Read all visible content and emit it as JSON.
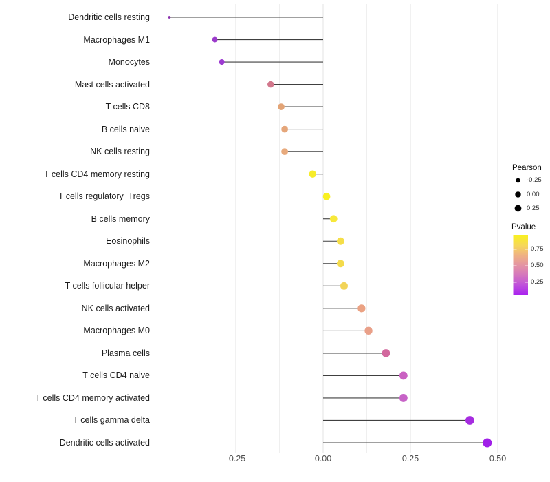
{
  "chart_data": {
    "type": "scatter",
    "variant": "horizontal-lollipop",
    "title": "",
    "xlabel": "",
    "ylabel": "",
    "grid": true,
    "xlim": [
      -0.49,
      0.52
    ],
    "x_ticks": [
      -0.25,
      0.0,
      0.25,
      0.5
    ],
    "x_tick_labels": [
      "-0.25",
      "0.00",
      "0.25",
      "0.50"
    ],
    "x_minor_gridlines": [
      -0.375,
      -0.125,
      0.125,
      0.375
    ],
    "stem_baseline": 0.0,
    "points": [
      {
        "label": "Dendritic cells resting",
        "pearson": -0.44,
        "color": "#8A2FAE"
      },
      {
        "label": "Macrophages M1",
        "pearson": -0.31,
        "color": "#9B3ACB"
      },
      {
        "label": "Monocytes",
        "pearson": -0.29,
        "color": "#9D3BD1"
      },
      {
        "label": "Mast cells activated",
        "pearson": -0.15,
        "color": "#D2778C"
      },
      {
        "label": "T cells CD8",
        "pearson": -0.12,
        "color": "#E3A476"
      },
      {
        "label": "B cells naive",
        "pearson": -0.11,
        "color": "#E5A67A"
      },
      {
        "label": "NK cells resting",
        "pearson": -0.11,
        "color": "#E8AA7D"
      },
      {
        "label": "T cells CD4 memory resting",
        "pearson": -0.03,
        "color": "#F7EC29"
      },
      {
        "label": "T cells regulatory  Tregs",
        "pearson": 0.01,
        "color": "#F9F021"
      },
      {
        "label": "B cells memory",
        "pearson": 0.03,
        "color": "#F7E83A"
      },
      {
        "label": "Eosinophils",
        "pearson": 0.05,
        "color": "#F5DE48"
      },
      {
        "label": "Macrophages M2",
        "pearson": 0.05,
        "color": "#F4DB4C"
      },
      {
        "label": "T cells follicular helper",
        "pearson": 0.06,
        "color": "#F2D458"
      },
      {
        "label": "NK cells activated",
        "pearson": 0.11,
        "color": "#EBA283"
      },
      {
        "label": "Macrophages M0",
        "pearson": 0.13,
        "color": "#E9A089"
      },
      {
        "label": "Plasma cells",
        "pearson": 0.18,
        "color": "#D2689D"
      },
      {
        "label": "T cells CD4 naive",
        "pearson": 0.23,
        "color": "#CA62C2"
      },
      {
        "label": "T cells CD4 memory activated",
        "pearson": 0.23,
        "color": "#C763C7"
      },
      {
        "label": "T cells gamma delta",
        "pearson": 0.42,
        "color": "#A62CE0"
      },
      {
        "label": "Dendritic cells activated",
        "pearson": 0.47,
        "color": "#A01FE8"
      }
    ],
    "legend": {
      "size": {
        "title": "Pearson",
        "items": [
          {
            "label": "-0.25",
            "value": -0.25
          },
          {
            "label": "0.00",
            "value": 0.0
          },
          {
            "label": "0.25",
            "value": 0.25
          }
        ]
      },
      "color": {
        "title": "Pvalue",
        "tick_labels": [
          "0.75",
          "0.50",
          "0.25"
        ],
        "gradient_top_to_bottom": [
          "#F9F021",
          "#F6D75B",
          "#EFB183",
          "#E393A4",
          "#D476BE",
          "#BE4EDC",
          "#A81FF0"
        ]
      }
    },
    "colors": {
      "background": "#ffffff",
      "gridline_major": "#e3e3e3",
      "gridline_minor": "#efefef",
      "stem": "#404040",
      "axis_text_x": "#4d4d4d",
      "axis_text_y": "#1c1c1c",
      "legend_dot": "#000000"
    }
  }
}
